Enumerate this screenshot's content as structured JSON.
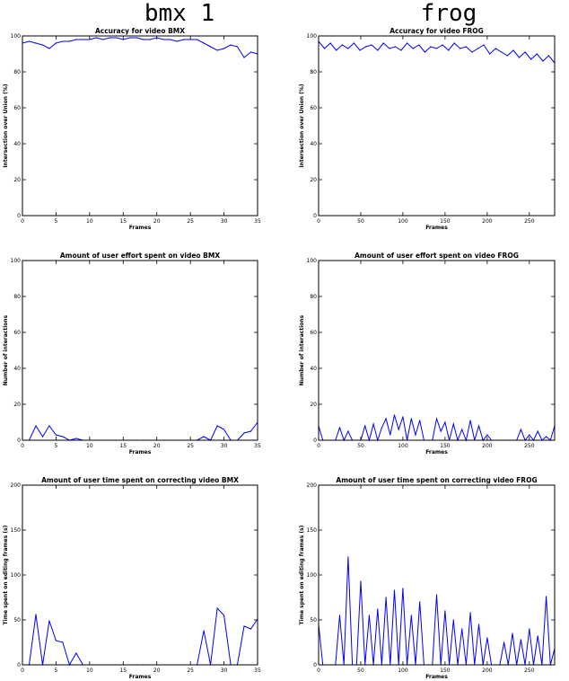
{
  "columns": [
    {
      "label": "bmx 1"
    },
    {
      "label": "frog"
    }
  ],
  "chart_data": [
    {
      "type": "line",
      "title": "Accuracy for video BMX",
      "xlabel": "Frames",
      "ylabel": "Intersection over Union (%)",
      "xlim": [
        0,
        35
      ],
      "ylim": [
        0,
        100
      ],
      "xticks": [
        0,
        5,
        10,
        15,
        20,
        25,
        30,
        35
      ],
      "yticks": [
        0,
        20,
        40,
        60,
        80,
        100
      ],
      "color": "#0000ff",
      "x": [
        0,
        1,
        2,
        3,
        4,
        5,
        6,
        7,
        8,
        9,
        10,
        11,
        12,
        13,
        14,
        15,
        16,
        17,
        18,
        19,
        20,
        21,
        22,
        23,
        24,
        25,
        26,
        27,
        28,
        29,
        30,
        31,
        32,
        33,
        34,
        35
      ],
      "y": [
        96,
        97,
        96,
        95,
        93,
        96,
        97,
        97,
        98,
        98,
        98,
        99,
        98,
        99,
        99,
        98,
        99,
        99,
        98,
        98,
        99,
        98,
        98,
        97,
        98,
        98,
        98,
        96,
        94,
        92,
        93,
        95,
        94,
        88,
        91,
        90
      ]
    },
    {
      "type": "line",
      "title": "Accuracy for video FROG",
      "xlabel": "Frames",
      "ylabel": "Intersection over Union (%)",
      "xlim": [
        0,
        280
      ],
      "ylim": [
        0,
        100
      ],
      "xticks": [
        0,
        50,
        100,
        150,
        200,
        250
      ],
      "yticks": [
        0,
        20,
        40,
        60,
        80,
        100
      ],
      "color": "#0000ff",
      "x": [
        0,
        7,
        14,
        21,
        28,
        35,
        42,
        49,
        56,
        63,
        70,
        77,
        84,
        91,
        98,
        105,
        112,
        119,
        126,
        133,
        140,
        147,
        154,
        161,
        168,
        175,
        182,
        189,
        196,
        203,
        210,
        217,
        224,
        231,
        238,
        245,
        252,
        259,
        266,
        273,
        280
      ],
      "y": [
        97,
        93,
        96,
        92,
        95,
        93,
        96,
        92,
        94,
        95,
        92,
        96,
        93,
        94,
        92,
        96,
        93,
        95,
        91,
        94,
        93,
        95,
        92,
        96,
        93,
        94,
        91,
        93,
        95,
        90,
        93,
        91,
        89,
        92,
        88,
        91,
        87,
        90,
        86,
        89,
        85
      ]
    },
    {
      "type": "line",
      "title": "Amount of user effort spent on video BMX",
      "xlabel": "Frames",
      "ylabel": "Number of interactions",
      "xlim": [
        0,
        35
      ],
      "ylim": [
        0,
        100
      ],
      "xticks": [
        0,
        5,
        10,
        15,
        20,
        25,
        30,
        35
      ],
      "yticks": [
        0,
        20,
        40,
        60,
        80,
        100
      ],
      "color": "#0000ff",
      "x": [
        0,
        1,
        2,
        3,
        4,
        5,
        6,
        7,
        8,
        9,
        10,
        11,
        12,
        13,
        14,
        15,
        16,
        17,
        18,
        19,
        20,
        21,
        22,
        23,
        24,
        25,
        26,
        27,
        28,
        29,
        30,
        31,
        32,
        33,
        34,
        35
      ],
      "y": [
        0,
        0,
        8,
        2,
        8,
        3,
        2,
        0,
        1,
        0,
        0,
        0,
        0,
        0,
        0,
        0,
        0,
        0,
        0,
        0,
        0,
        0,
        0,
        0,
        0,
        0,
        0,
        2,
        0,
        8,
        6,
        0,
        0,
        4,
        5,
        10
      ]
    },
    {
      "type": "line",
      "title": "Amount of user effort spent on video FROG",
      "xlabel": "Frames",
      "ylabel": "Number of interactions",
      "xlim": [
        0,
        280
      ],
      "ylim": [
        0,
        100
      ],
      "xticks": [
        0,
        50,
        100,
        150,
        200,
        250
      ],
      "yticks": [
        0,
        20,
        40,
        60,
        80,
        100
      ],
      "color": "#0000ff",
      "x": [
        0,
        5,
        10,
        15,
        20,
        25,
        30,
        35,
        40,
        45,
        50,
        55,
        60,
        65,
        70,
        75,
        80,
        85,
        90,
        95,
        100,
        105,
        110,
        115,
        120,
        125,
        130,
        135,
        140,
        145,
        150,
        155,
        160,
        165,
        170,
        175,
        180,
        185,
        190,
        195,
        200,
        205,
        210,
        215,
        220,
        225,
        230,
        235,
        240,
        245,
        250,
        255,
        260,
        265,
        270,
        275,
        280
      ],
      "y": [
        8,
        0,
        0,
        0,
        0,
        7,
        0,
        5,
        0,
        0,
        0,
        8,
        0,
        9,
        0,
        7,
        12,
        3,
        14,
        6,
        13,
        0,
        12,
        3,
        11,
        0,
        0,
        0,
        12,
        5,
        10,
        0,
        9,
        0,
        6,
        0,
        11,
        0,
        8,
        0,
        3,
        0,
        0,
        0,
        0,
        0,
        0,
        0,
        6,
        0,
        3,
        0,
        5,
        0,
        2,
        0,
        8
      ]
    },
    {
      "type": "line",
      "title": "Amount of user time spent on correcting video BMX",
      "xlabel": "Frames",
      "ylabel": "Time spent on editing frames (s)",
      "xlim": [
        0,
        35
      ],
      "ylim": [
        0,
        200
      ],
      "xticks": [
        0,
        5,
        10,
        15,
        20,
        25,
        30,
        35
      ],
      "yticks": [
        0,
        50,
        100,
        150,
        200
      ],
      "color": "#0000ff",
      "x": [
        0,
        1,
        2,
        3,
        4,
        5,
        6,
        7,
        8,
        9,
        10,
        11,
        12,
        13,
        14,
        15,
        16,
        17,
        18,
        19,
        20,
        21,
        22,
        23,
        24,
        25,
        26,
        27,
        28,
        29,
        30,
        31,
        32,
        33,
        34,
        35
      ],
      "y": [
        0,
        0,
        56,
        0,
        49,
        27,
        25,
        0,
        13,
        0,
        0,
        0,
        0,
        0,
        0,
        0,
        0,
        0,
        0,
        0,
        0,
        0,
        0,
        0,
        0,
        0,
        0,
        38,
        0,
        63,
        55,
        0,
        0,
        43,
        40,
        51
      ]
    },
    {
      "type": "line",
      "title": "Amount of user time spent on correcting video FROG",
      "xlabel": "Frames",
      "ylabel": "Time spent on editing frames (s)",
      "xlim": [
        0,
        280
      ],
      "ylim": [
        0,
        200
      ],
      "xticks": [
        0,
        50,
        100,
        150,
        200,
        250
      ],
      "yticks": [
        0,
        50,
        100,
        150,
        200
      ],
      "color": "#0000ff",
      "x": [
        0,
        5,
        10,
        15,
        20,
        25,
        30,
        35,
        40,
        45,
        50,
        55,
        60,
        65,
        70,
        75,
        80,
        85,
        90,
        95,
        100,
        105,
        110,
        115,
        120,
        125,
        130,
        135,
        140,
        145,
        150,
        155,
        160,
        165,
        170,
        175,
        180,
        185,
        190,
        195,
        200,
        205,
        210,
        215,
        220,
        225,
        230,
        235,
        240,
        245,
        250,
        255,
        260,
        265,
        270,
        275,
        280
      ],
      "y": [
        45,
        0,
        0,
        0,
        0,
        55,
        0,
        120,
        0,
        0,
        93,
        0,
        55,
        0,
        62,
        0,
        75,
        0,
        83,
        0,
        85,
        0,
        55,
        0,
        70,
        0,
        0,
        0,
        78,
        0,
        60,
        0,
        50,
        0,
        40,
        0,
        58,
        0,
        45,
        0,
        30,
        0,
        0,
        0,
        25,
        0,
        35,
        0,
        28,
        0,
        40,
        0,
        32,
        0,
        76,
        0,
        18
      ]
    }
  ]
}
